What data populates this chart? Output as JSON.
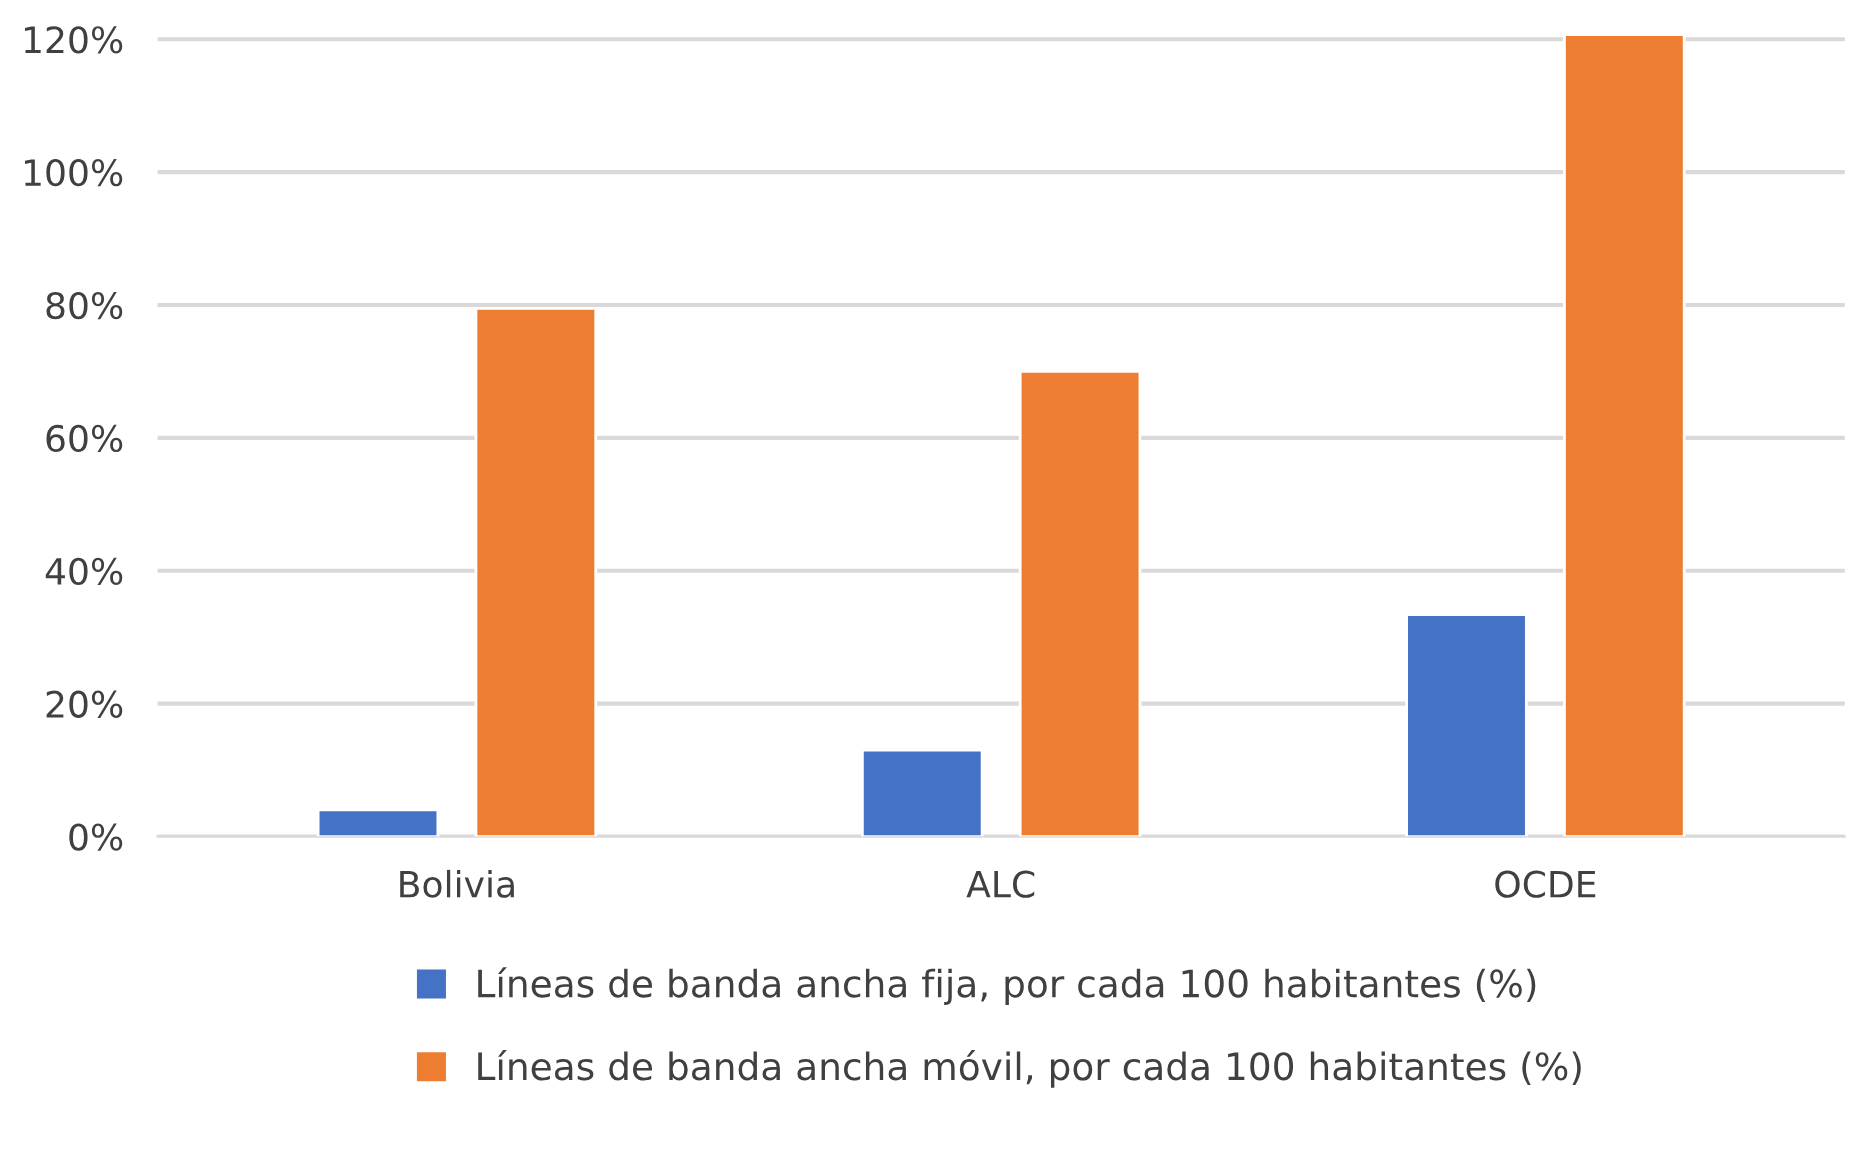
{
  "chart_data": {
    "type": "bar",
    "categories": [
      "Bolivia",
      "ALC",
      "OCDE"
    ],
    "series": [
      {
        "name": "Líneas de banda ancha fija, por cada 100 habitantes (%)",
        "color": "#4472c4",
        "values": [
          4,
          13,
          33.4
        ]
      },
      {
        "name": "Líneas de banda ancha móvil, por cada 100 habitantes (%)",
        "color": "#ed7d31",
        "values": [
          79.5,
          70,
          120.7
        ]
      }
    ],
    "ylim": [
      0,
      121.5
    ],
    "yticks": [
      {
        "value": 0,
        "label": "0%"
      },
      {
        "value": 20,
        "label": "20%"
      },
      {
        "value": 40,
        "label": "40%"
      },
      {
        "value": 60,
        "label": "60%"
      },
      {
        "value": 80,
        "label": "80%"
      },
      {
        "value": 100,
        "label": "100%"
      },
      {
        "value": 120,
        "label": "120%"
      }
    ],
    "grid": "y",
    "legend": "bottom"
  }
}
